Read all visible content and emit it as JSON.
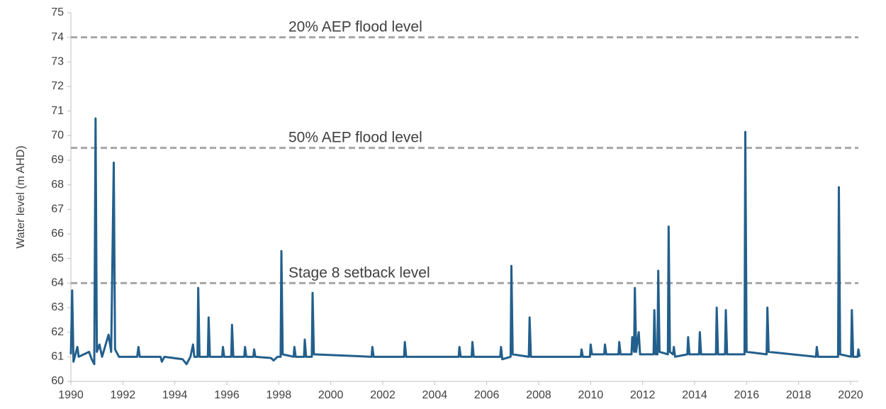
{
  "chart_data": {
    "type": "line",
    "y_label": "Water level (m AHD)",
    "xlim": [
      1990,
      2020.3
    ],
    "ylim": [
      60,
      75
    ],
    "xticks": [
      1990,
      1992,
      1994,
      1996,
      1998,
      2000,
      2002,
      2004,
      2006,
      2008,
      2010,
      2012,
      2014,
      2016,
      2018,
      2020
    ],
    "yticks": [
      60,
      61,
      62,
      63,
      64,
      65,
      66,
      67,
      68,
      69,
      70,
      71,
      72,
      73,
      74,
      75
    ],
    "reference_lines": [
      {
        "value": 74,
        "label": "20% AEP flood level"
      },
      {
        "value": 69.5,
        "label": "50% AEP flood level"
      },
      {
        "value": 64,
        "label": "Stage 8 setback level"
      }
    ],
    "reference_color": "#a6a6a6",
    "x": [
      1990.0,
      1990.05,
      1990.1,
      1990.15,
      1990.25,
      1990.3,
      1990.7,
      1990.8,
      1990.9,
      1990.95,
      1991.0,
      1991.1,
      1991.2,
      1991.45,
      1991.55,
      1991.65,
      1991.7,
      1991.85,
      1992.55,
      1992.6,
      1992.65,
      1993.45,
      1993.5,
      1993.6,
      1994.3,
      1994.45,
      1994.6,
      1994.7,
      1994.75,
      1994.87,
      1994.9,
      1994.95,
      1995.27,
      1995.3,
      1995.35,
      1995.82,
      1995.85,
      1995.9,
      1996.17,
      1996.2,
      1996.25,
      1996.67,
      1996.7,
      1996.75,
      1997.02,
      1997.05,
      1997.1,
      1997.7,
      1997.8,
      1997.95,
      1998.07,
      1998.1,
      1998.15,
      1998.57,
      1998.6,
      1998.65,
      1998.97,
      1999.0,
      1999.05,
      1999.27,
      1999.3,
      1999.35,
      2001.57,
      2001.6,
      2001.65,
      2002.82,
      2002.85,
      2002.9,
      2004.92,
      2004.95,
      2005.0,
      2005.42,
      2005.45,
      2005.5,
      2006.52,
      2006.55,
      2006.6,
      2006.92,
      2006.95,
      2007.0,
      2007.62,
      2007.65,
      2007.7,
      2009.62,
      2009.65,
      2009.7,
      2009.97,
      2010.0,
      2010.05,
      2010.52,
      2010.55,
      2010.6,
      2011.07,
      2011.1,
      2011.15,
      2011.57,
      2011.6,
      2011.67,
      2011.7,
      2011.75,
      2011.85,
      2011.9,
      2012.42,
      2012.45,
      2012.5,
      2012.57,
      2012.6,
      2012.65,
      2012.97,
      2013.0,
      2013.05,
      2013.17,
      2013.2,
      2013.25,
      2013.72,
      2013.75,
      2013.8,
      2014.17,
      2014.2,
      2014.25,
      2014.82,
      2014.85,
      2014.9,
      2015.17,
      2015.2,
      2015.25,
      2015.92,
      2015.95,
      2016.0,
      2016.77,
      2016.8,
      2016.85,
      2018.67,
      2018.7,
      2018.75,
      2019.52,
      2019.55,
      2019.6,
      2020.02,
      2020.05,
      2020.1,
      2020.27,
      2020.3,
      2020.35
    ],
    "series": [
      {
        "color": "#235f8c",
        "values": [
          61.1,
          63.7,
          60.8,
          61.0,
          61.4,
          61.0,
          61.2,
          60.9,
          60.7,
          70.7,
          61.2,
          61.5,
          61.0,
          61.9,
          61.2,
          68.9,
          61.3,
          61.0,
          61.0,
          61.4,
          61.0,
          61.0,
          60.8,
          61.0,
          60.9,
          60.7,
          61.0,
          61.5,
          61.0,
          61.0,
          63.8,
          61.0,
          61.0,
          62.6,
          61.0,
          61.0,
          61.4,
          61.0,
          61.0,
          62.3,
          61.0,
          61.0,
          61.4,
          61.0,
          61.0,
          61.3,
          61.0,
          60.95,
          60.85,
          61.0,
          61.0,
          65.3,
          61.1,
          61.0,
          61.4,
          61.0,
          61.0,
          61.7,
          61.0,
          61.0,
          63.6,
          61.1,
          61.0,
          61.4,
          61.0,
          61.0,
          61.6,
          61.0,
          61.0,
          61.4,
          61.0,
          61.0,
          61.6,
          61.0,
          61.0,
          61.4,
          60.9,
          61.0,
          64.7,
          61.1,
          61.0,
          62.6,
          61.0,
          61.0,
          61.3,
          61.0,
          61.0,
          61.5,
          61.1,
          61.1,
          61.5,
          61.1,
          61.1,
          61.6,
          61.1,
          61.1,
          61.8,
          61.2,
          63.8,
          61.2,
          62.0,
          61.1,
          61.1,
          62.9,
          61.1,
          61.1,
          64.5,
          61.2,
          61.1,
          66.3,
          61.2,
          61.1,
          61.4,
          61.0,
          61.1,
          61.8,
          61.1,
          61.1,
          62.0,
          61.1,
          61.1,
          63.0,
          61.1,
          61.1,
          62.9,
          61.1,
          61.1,
          70.15,
          61.2,
          61.1,
          63.0,
          61.2,
          61.0,
          61.4,
          61.0,
          61.0,
          67.9,
          61.1,
          61.0,
          62.9,
          61.0,
          61.0,
          61.3,
          61.0
        ]
      }
    ]
  }
}
